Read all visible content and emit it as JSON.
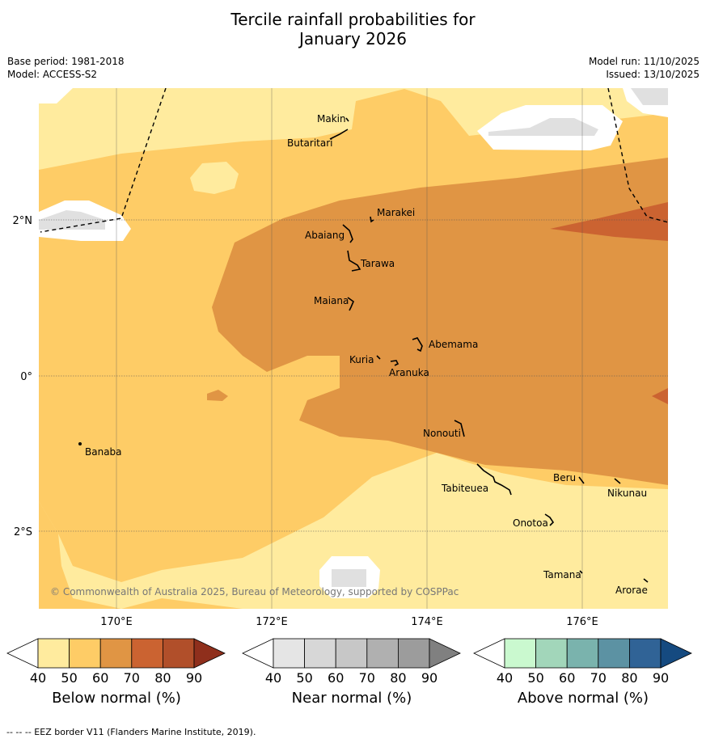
{
  "title_line1": "Tercile rainfall probabilities for",
  "title_line2": "January 2026",
  "base_period": "Base period: 1981-2018",
  "model": "Model: ACCESS-S2",
  "model_run": "Model run: 11/10/2025",
  "issued": "Issued: 13/10/2025",
  "copyright": "© Commonwealth of Australia 2025, Bureau of Meteorology, supported by COSPPac",
  "footer": "--  --  -- EEZ border V11 (Flanders Marine Institute, 2019).",
  "lat_labels": [
    "2°N",
    "0°",
    "2°S"
  ],
  "lon_labels": [
    "170°E",
    "172°E",
    "174°E",
    "176°E"
  ],
  "places": [
    "Makin",
    "Butaritari",
    "Marakei",
    "Abaiang",
    "Tarawa",
    "Maiana",
    "Abemama",
    "Kuria",
    "Aranuka",
    "Nonouti",
    "Banaba",
    "Beru",
    "Tabiteuea",
    "Nikunau",
    "Onotoa",
    "Tamana",
    "Arorae"
  ],
  "colors": {
    "below": [
      "#ffeb9e",
      "#fecc66",
      "#e09544",
      "#cb6331",
      "#b14f2a",
      "#8f2f1c"
    ],
    "near": [
      "#e5e5e5",
      "#d7d7d7",
      "#c7c7c7",
      "#b0b0b0",
      "#9c9c9c",
      "#808080"
    ],
    "above": [
      "#caf9cf",
      "#a2d6ba",
      "#7ab3ad",
      "#5c92a3",
      "#306396",
      "#154a80"
    ]
  },
  "colorbars": [
    {
      "title": "Below normal (%)",
      "ticks": [
        "40",
        "50",
        "60",
        "70",
        "80",
        "90"
      ]
    },
    {
      "title": "Near normal (%)",
      "ticks": [
        "40",
        "50",
        "60",
        "70",
        "80",
        "90"
      ]
    },
    {
      "title": "Above normal (%)",
      "ticks": [
        "40",
        "50",
        "60",
        "70",
        "80",
        "90"
      ]
    }
  ]
}
